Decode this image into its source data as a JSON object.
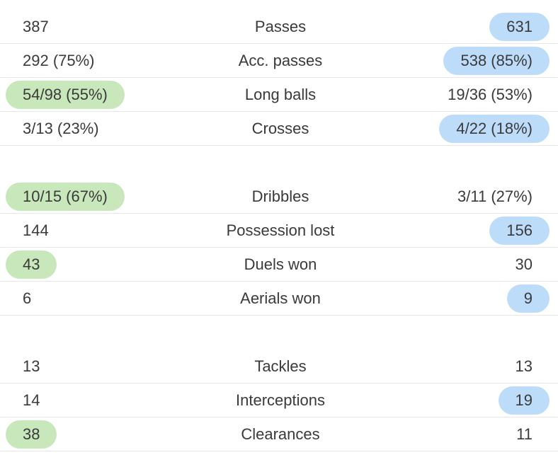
{
  "colors": {
    "home_highlight": "#c8e8bc",
    "away_highlight": "#bcdcfa",
    "divider": "#e6e6e6",
    "text": "#3a3a3a"
  },
  "groups": [
    {
      "rows": [
        {
          "label": "Passes",
          "home": "387",
          "away": "631",
          "leader": "away"
        },
        {
          "label": "Acc. passes",
          "home": "292 (75%)",
          "away": "538 (85%)",
          "leader": "away"
        },
        {
          "label": "Long balls",
          "home": "54/98 (55%)",
          "away": "19/36 (53%)",
          "leader": "home"
        },
        {
          "label": "Crosses",
          "home": "3/13 (23%)",
          "away": "4/22 (18%)",
          "leader": "away"
        }
      ]
    },
    {
      "rows": [
        {
          "label": "Dribbles",
          "home": "10/15 (67%)",
          "away": "3/11 (27%)",
          "leader": "home"
        },
        {
          "label": "Possession lost",
          "home": "144",
          "away": "156",
          "leader": "away"
        },
        {
          "label": "Duels won",
          "home": "43",
          "away": "30",
          "leader": "home"
        },
        {
          "label": "Aerials won",
          "home": "6",
          "away": "9",
          "leader": "away"
        }
      ]
    },
    {
      "rows": [
        {
          "label": "Tackles",
          "home": "13",
          "away": "13",
          "leader": "none"
        },
        {
          "label": "Interceptions",
          "home": "14",
          "away": "19",
          "leader": "away"
        },
        {
          "label": "Clearances",
          "home": "38",
          "away": "11",
          "leader": "home"
        }
      ]
    }
  ]
}
